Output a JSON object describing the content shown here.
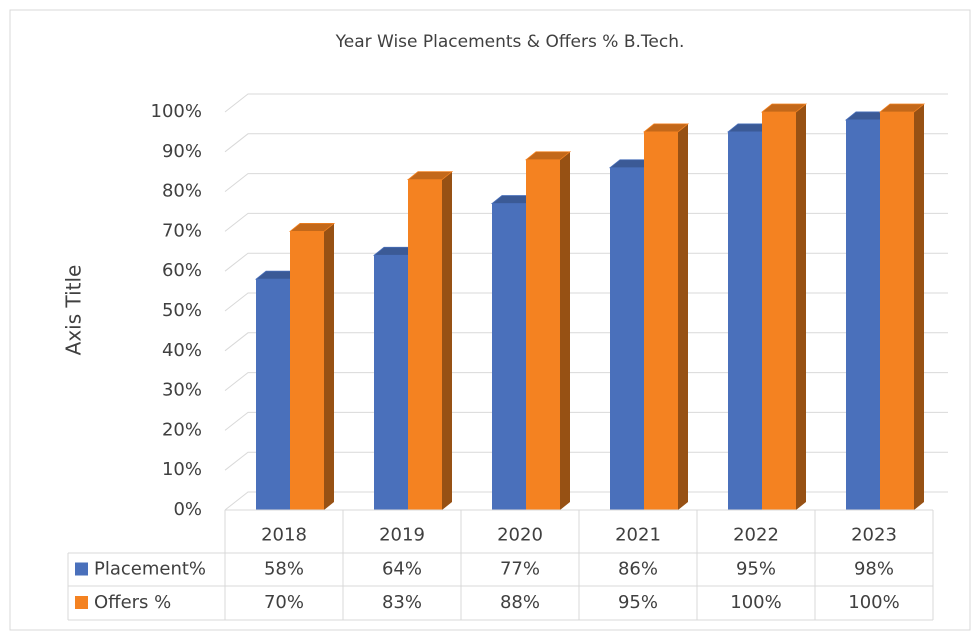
{
  "chart_data": {
    "type": "bar3d",
    "title": "Year Wise Placements & Offers % B.Tech.",
    "y_axis_title": "Axis Title",
    "categories": [
      "2018",
      "2019",
      "2020",
      "2021",
      "2022",
      "2023"
    ],
    "series": [
      {
        "name": "Placement%",
        "color": "#4a70bb",
        "values": [
          58,
          64,
          77,
          86,
          95,
          98
        ],
        "value_labels": [
          "58%",
          "64%",
          "77%",
          "86%",
          "95%",
          "98%"
        ]
      },
      {
        "name": "Offers %",
        "color": "#f48221",
        "values": [
          70,
          83,
          88,
          95,
          100,
          100
        ],
        "value_labels": [
          "70%",
          "83%",
          "88%",
          "95%",
          "100%",
          "100%"
        ]
      }
    ],
    "ylim": [
      0,
      100
    ],
    "yticks": [
      {
        "value": 0,
        "label": "0%"
      },
      {
        "value": 10,
        "label": "10%"
      },
      {
        "value": 20,
        "label": "20%"
      },
      {
        "value": 30,
        "label": "30%"
      },
      {
        "value": 40,
        "label": "40%"
      },
      {
        "value": 50,
        "label": "50%"
      },
      {
        "value": 60,
        "label": "60%"
      },
      {
        "value": 70,
        "label": "70%"
      },
      {
        "value": 80,
        "label": "80%"
      },
      {
        "value": 90,
        "label": "90%"
      },
      {
        "value": 100,
        "label": "100%"
      }
    ],
    "grid": true,
    "data_table": true
  }
}
